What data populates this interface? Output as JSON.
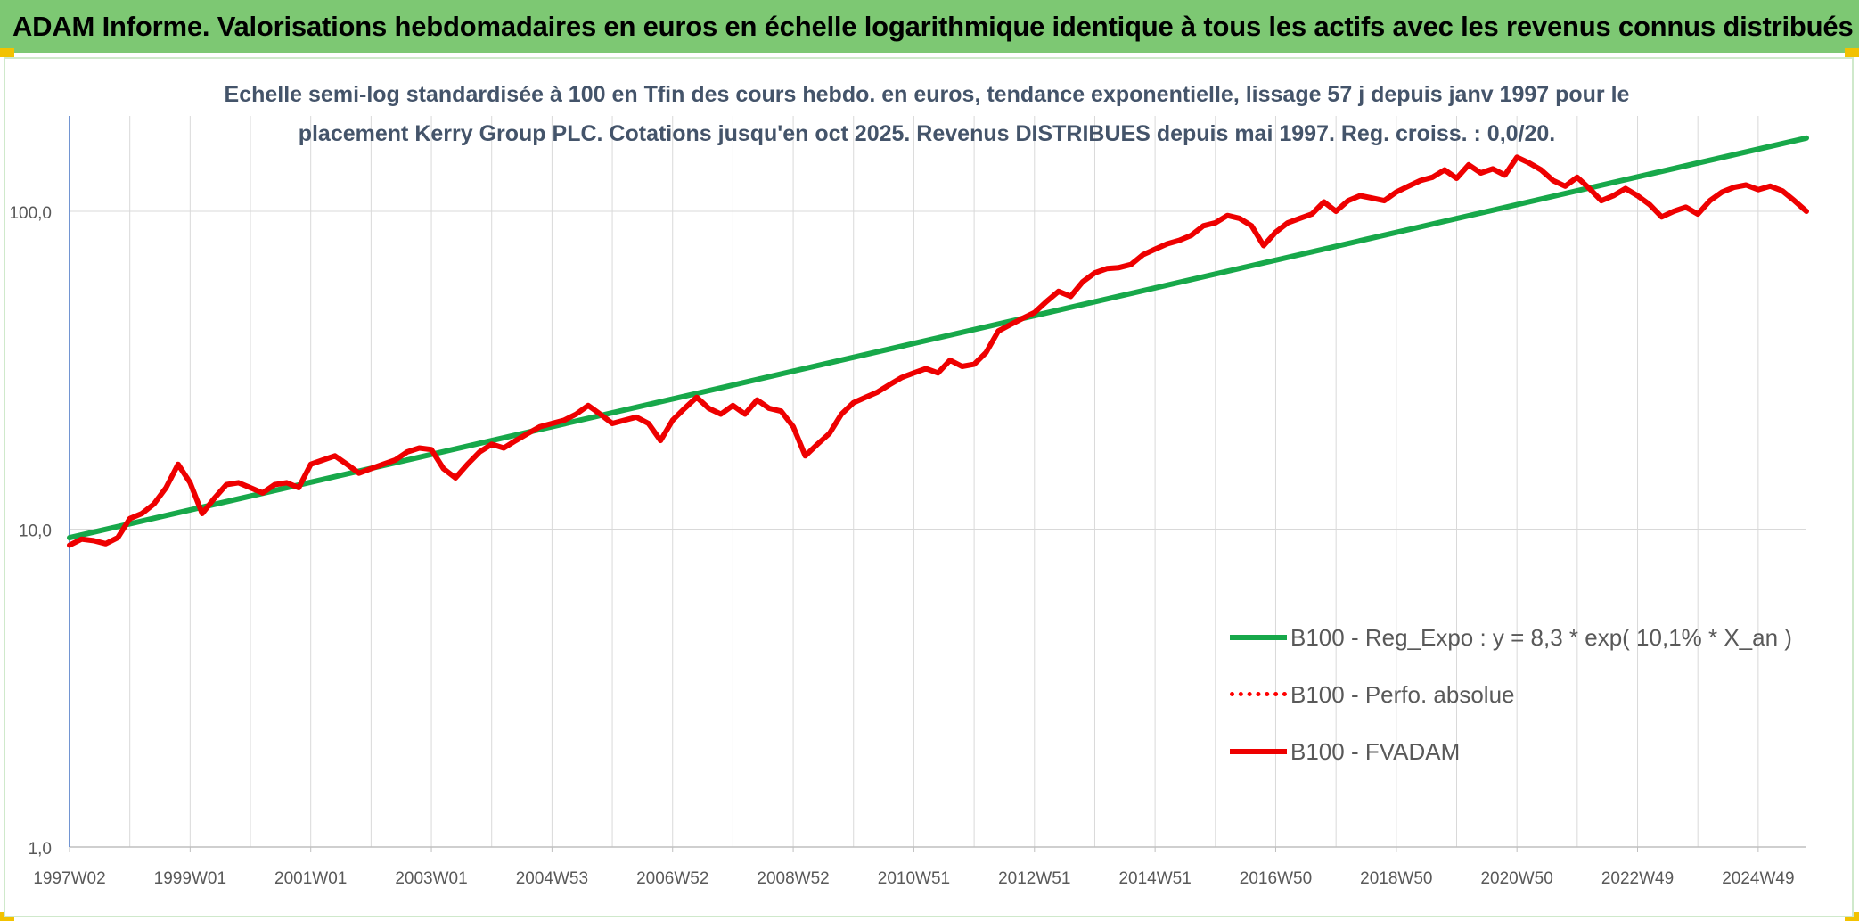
{
  "header": {
    "title": "ADAM Informe. Valorisations hebdomadaires en euros en échelle logarithmique identique à tous les actifs avec les revenus connus distribués"
  },
  "chart_data": {
    "type": "line",
    "subtitle_lines": [
      "Echelle semi-log standardisée à 100 en Tfin des cours hebdo. en euros, tendance exponentielle, lissage 57 j depuis janv 1997 pour le",
      "placement Kerry Group PLC. Cotations jusqu'en oct 2025. Revenus DISTRIBUES depuis mai 1997. Reg. croiss. : 0,0/20."
    ],
    "y_scale": "log",
    "ylim": [
      1,
      180
    ],
    "y_ticks": [
      {
        "value": 1,
        "label": "1,0"
      },
      {
        "value": 10,
        "label": "10,0"
      },
      {
        "value": 100,
        "label": "100,0"
      }
    ],
    "xlim": [
      1997.0,
      2025.8
    ],
    "x_ticks": [
      {
        "value": 1997.0,
        "label": "1997W02"
      },
      {
        "value": 1999.0,
        "label": "1999W01"
      },
      {
        "value": 2001.0,
        "label": "2001W01"
      },
      {
        "value": 2003.0,
        "label": "2003W01"
      },
      {
        "value": 2005.0,
        "label": "2004W53"
      },
      {
        "value": 2007.0,
        "label": "2006W52"
      },
      {
        "value": 2009.0,
        "label": "2008W52"
      },
      {
        "value": 2011.0,
        "label": "2010W51"
      },
      {
        "value": 2013.0,
        "label": "2012W51"
      },
      {
        "value": 2015.0,
        "label": "2014W51"
      },
      {
        "value": 2017.0,
        "label": "2016W50"
      },
      {
        "value": 2019.0,
        "label": "2018W50"
      },
      {
        "value": 2021.0,
        "label": "2020W50"
      },
      {
        "value": 2023.0,
        "label": "2022W49"
      },
      {
        "value": 2025.0,
        "label": "2024W49"
      }
    ],
    "grid": {
      "vertical": true,
      "horizontal": true
    },
    "legend_position": "bottom-right",
    "series": [
      {
        "name": "B100 - Reg_Expo : y = 8,3 * exp( 10,1% *  X_an )",
        "color": "#17a84a",
        "style": "solid",
        "x": [
          1997.0,
          2025.8
        ],
        "y": [
          9.4,
          170
        ]
      },
      {
        "name": "B100 - Perfo. absolue",
        "color": "#ff0000",
        "style": "dotted",
        "x": [],
        "y": []
      },
      {
        "name": "B100 - FVADAM",
        "color": "#ee0000",
        "style": "solid",
        "x": [
          1997.0,
          1997.2,
          1997.4,
          1997.6,
          1997.8,
          1998.0,
          1998.2,
          1998.4,
          1998.6,
          1998.8,
          1999.0,
          1999.2,
          1999.4,
          1999.6,
          1999.8,
          2000.0,
          2000.2,
          2000.4,
          2000.6,
          2000.8,
          2001.0,
          2001.2,
          2001.4,
          2001.6,
          2001.8,
          2002.0,
          2002.2,
          2002.4,
          2002.6,
          2002.8,
          2003.0,
          2003.2,
          2003.4,
          2003.6,
          2003.8,
          2004.0,
          2004.2,
          2004.4,
          2004.6,
          2004.8,
          2005.0,
          2005.2,
          2005.4,
          2005.6,
          2005.8,
          2006.0,
          2006.2,
          2006.4,
          2006.6,
          2006.8,
          2007.0,
          2007.2,
          2007.4,
          2007.6,
          2007.8,
          2008.0,
          2008.2,
          2008.4,
          2008.6,
          2008.8,
          2009.0,
          2009.2,
          2009.4,
          2009.6,
          2009.8,
          2010.0,
          2010.2,
          2010.4,
          2010.6,
          2010.8,
          2011.0,
          2011.2,
          2011.4,
          2011.6,
          2011.8,
          2012.0,
          2012.2,
          2012.4,
          2012.6,
          2012.8,
          2013.0,
          2013.2,
          2013.4,
          2013.6,
          2013.8,
          2014.0,
          2014.2,
          2014.4,
          2014.6,
          2014.8,
          2015.0,
          2015.2,
          2015.4,
          2015.6,
          2015.8,
          2016.0,
          2016.2,
          2016.4,
          2016.6,
          2016.8,
          2017.0,
          2017.2,
          2017.4,
          2017.6,
          2017.8,
          2018.0,
          2018.2,
          2018.4,
          2018.6,
          2018.8,
          2019.0,
          2019.2,
          2019.4,
          2019.6,
          2019.8,
          2020.0,
          2020.2,
          2020.4,
          2020.6,
          2020.8,
          2021.0,
          2021.2,
          2021.4,
          2021.6,
          2021.8,
          2022.0,
          2022.2,
          2022.4,
          2022.6,
          2022.8,
          2023.0,
          2023.2,
          2023.4,
          2023.6,
          2023.8,
          2024.0,
          2024.2,
          2024.4,
          2024.6,
          2024.8,
          2025.0,
          2025.2,
          2025.4,
          2025.6,
          2025.8
        ],
        "y": [
          8.9,
          9.3,
          9.2,
          9.0,
          9.4,
          10.8,
          11.2,
          12.0,
          13.5,
          16.0,
          14.0,
          11.2,
          12.5,
          13.8,
          14.0,
          13.5,
          13.0,
          13.8,
          14.0,
          13.5,
          16.0,
          16.5,
          17.0,
          16.0,
          15.0,
          15.5,
          16.0,
          16.5,
          17.5,
          18.0,
          17.8,
          15.5,
          14.5,
          16.0,
          17.5,
          18.5,
          18.0,
          19.0,
          20.0,
          21.0,
          21.5,
          22.0,
          23.0,
          24.5,
          23.0,
          21.5,
          22.0,
          22.5,
          21.5,
          19.0,
          22.0,
          24.0,
          26.0,
          24.0,
          23.0,
          24.5,
          23.0,
          25.5,
          24.0,
          23.5,
          21.0,
          17.0,
          18.5,
          20.0,
          23.0,
          25.0,
          26.0,
          27.0,
          28.5,
          30.0,
          31.0,
          32.0,
          31.0,
          34.0,
          32.5,
          33.0,
          36.0,
          42.0,
          44.0,
          46.0,
          48.0,
          52.0,
          56.0,
          54.0,
          60.0,
          64.0,
          66.0,
          66.5,
          68.0,
          73.0,
          76.0,
          79.0,
          81.0,
          84.0,
          90.0,
          92.0,
          97.0,
          95.0,
          90.0,
          78.0,
          86.0,
          92.0,
          95.0,
          98.0,
          107.0,
          100.0,
          108.0,
          112.0,
          110.0,
          108.0,
          115.0,
          120.0,
          125.0,
          128.0,
          135.0,
          127.0,
          140.0,
          132.0,
          136.0,
          130.0,
          148.0,
          142.0,
          135.0,
          125.0,
          120.0,
          128.0,
          118.0,
          108.0,
          112.0,
          118.0,
          112.0,
          105.0,
          96.0,
          100.0,
          103.0,
          98.0,
          108.0,
          115.0,
          119.0,
          121.0,
          117.0,
          120.0,
          116.0,
          108.0,
          100.0
        ]
      }
    ]
  }
}
